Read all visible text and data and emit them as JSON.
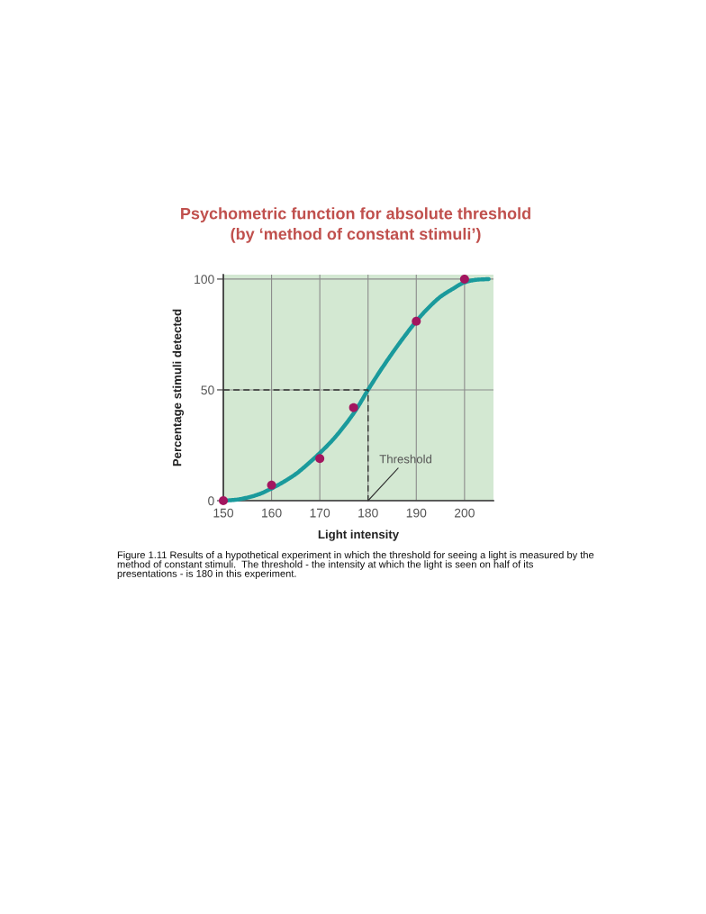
{
  "chart_data": {
    "type": "line",
    "title": "Psychometric function for absolute threshold\n(by ‘method of constant stimuli’)",
    "xlabel": "Light intensity",
    "ylabel": "Percentage stimuli detected",
    "xlim": [
      150,
      206
    ],
    "xticks": [
      150,
      160,
      170,
      180,
      190,
      200
    ],
    "ylim": [
      0,
      102
    ],
    "yticks": [
      0,
      50,
      100
    ],
    "grid": true,
    "series": [
      {
        "color": "#1a9a9c",
        "x": [
          150,
          152.5,
          155,
          157.5,
          160,
          162.5,
          165,
          167.5,
          170,
          172.5,
          175,
          177.5,
          180,
          182.5,
          185,
          187.5,
          190,
          192.5,
          195,
          197.5,
          200,
          202.5,
          205
        ],
        "values": [
          0,
          0.4,
          1.4,
          3,
          5.5,
          8.5,
          12,
          16.5,
          21.5,
          27,
          33.5,
          41,
          50,
          58.5,
          66.5,
          74,
          81,
          87,
          92,
          95.5,
          98.5,
          99.7,
          100
        ]
      },
      {
        "type": "line",
        "color": "#333333",
        "line_style": "dashed",
        "x": [
          150,
          180,
          180
        ],
        "values": [
          50,
          50,
          0
        ]
      },
      {
        "type": "scatter",
        "color": "#a3155f",
        "marker": "circle",
        "x": [
          150,
          160,
          170,
          177,
          190,
          200
        ],
        "values": [
          0,
          7,
          19,
          42,
          81,
          100
        ]
      }
    ],
    "annotations": [
      {
        "text": "Threshold",
        "x": 180,
        "y": 0
      },
      "Figure 1.11 Results of a hypothetical experiment in which the threshold for seeing a light is measured by the\nmethod of constant stimuli.  The threshold - the intensity at which the light is seen on half of its\npresentations - is 180 in this experiment."
    ]
  }
}
